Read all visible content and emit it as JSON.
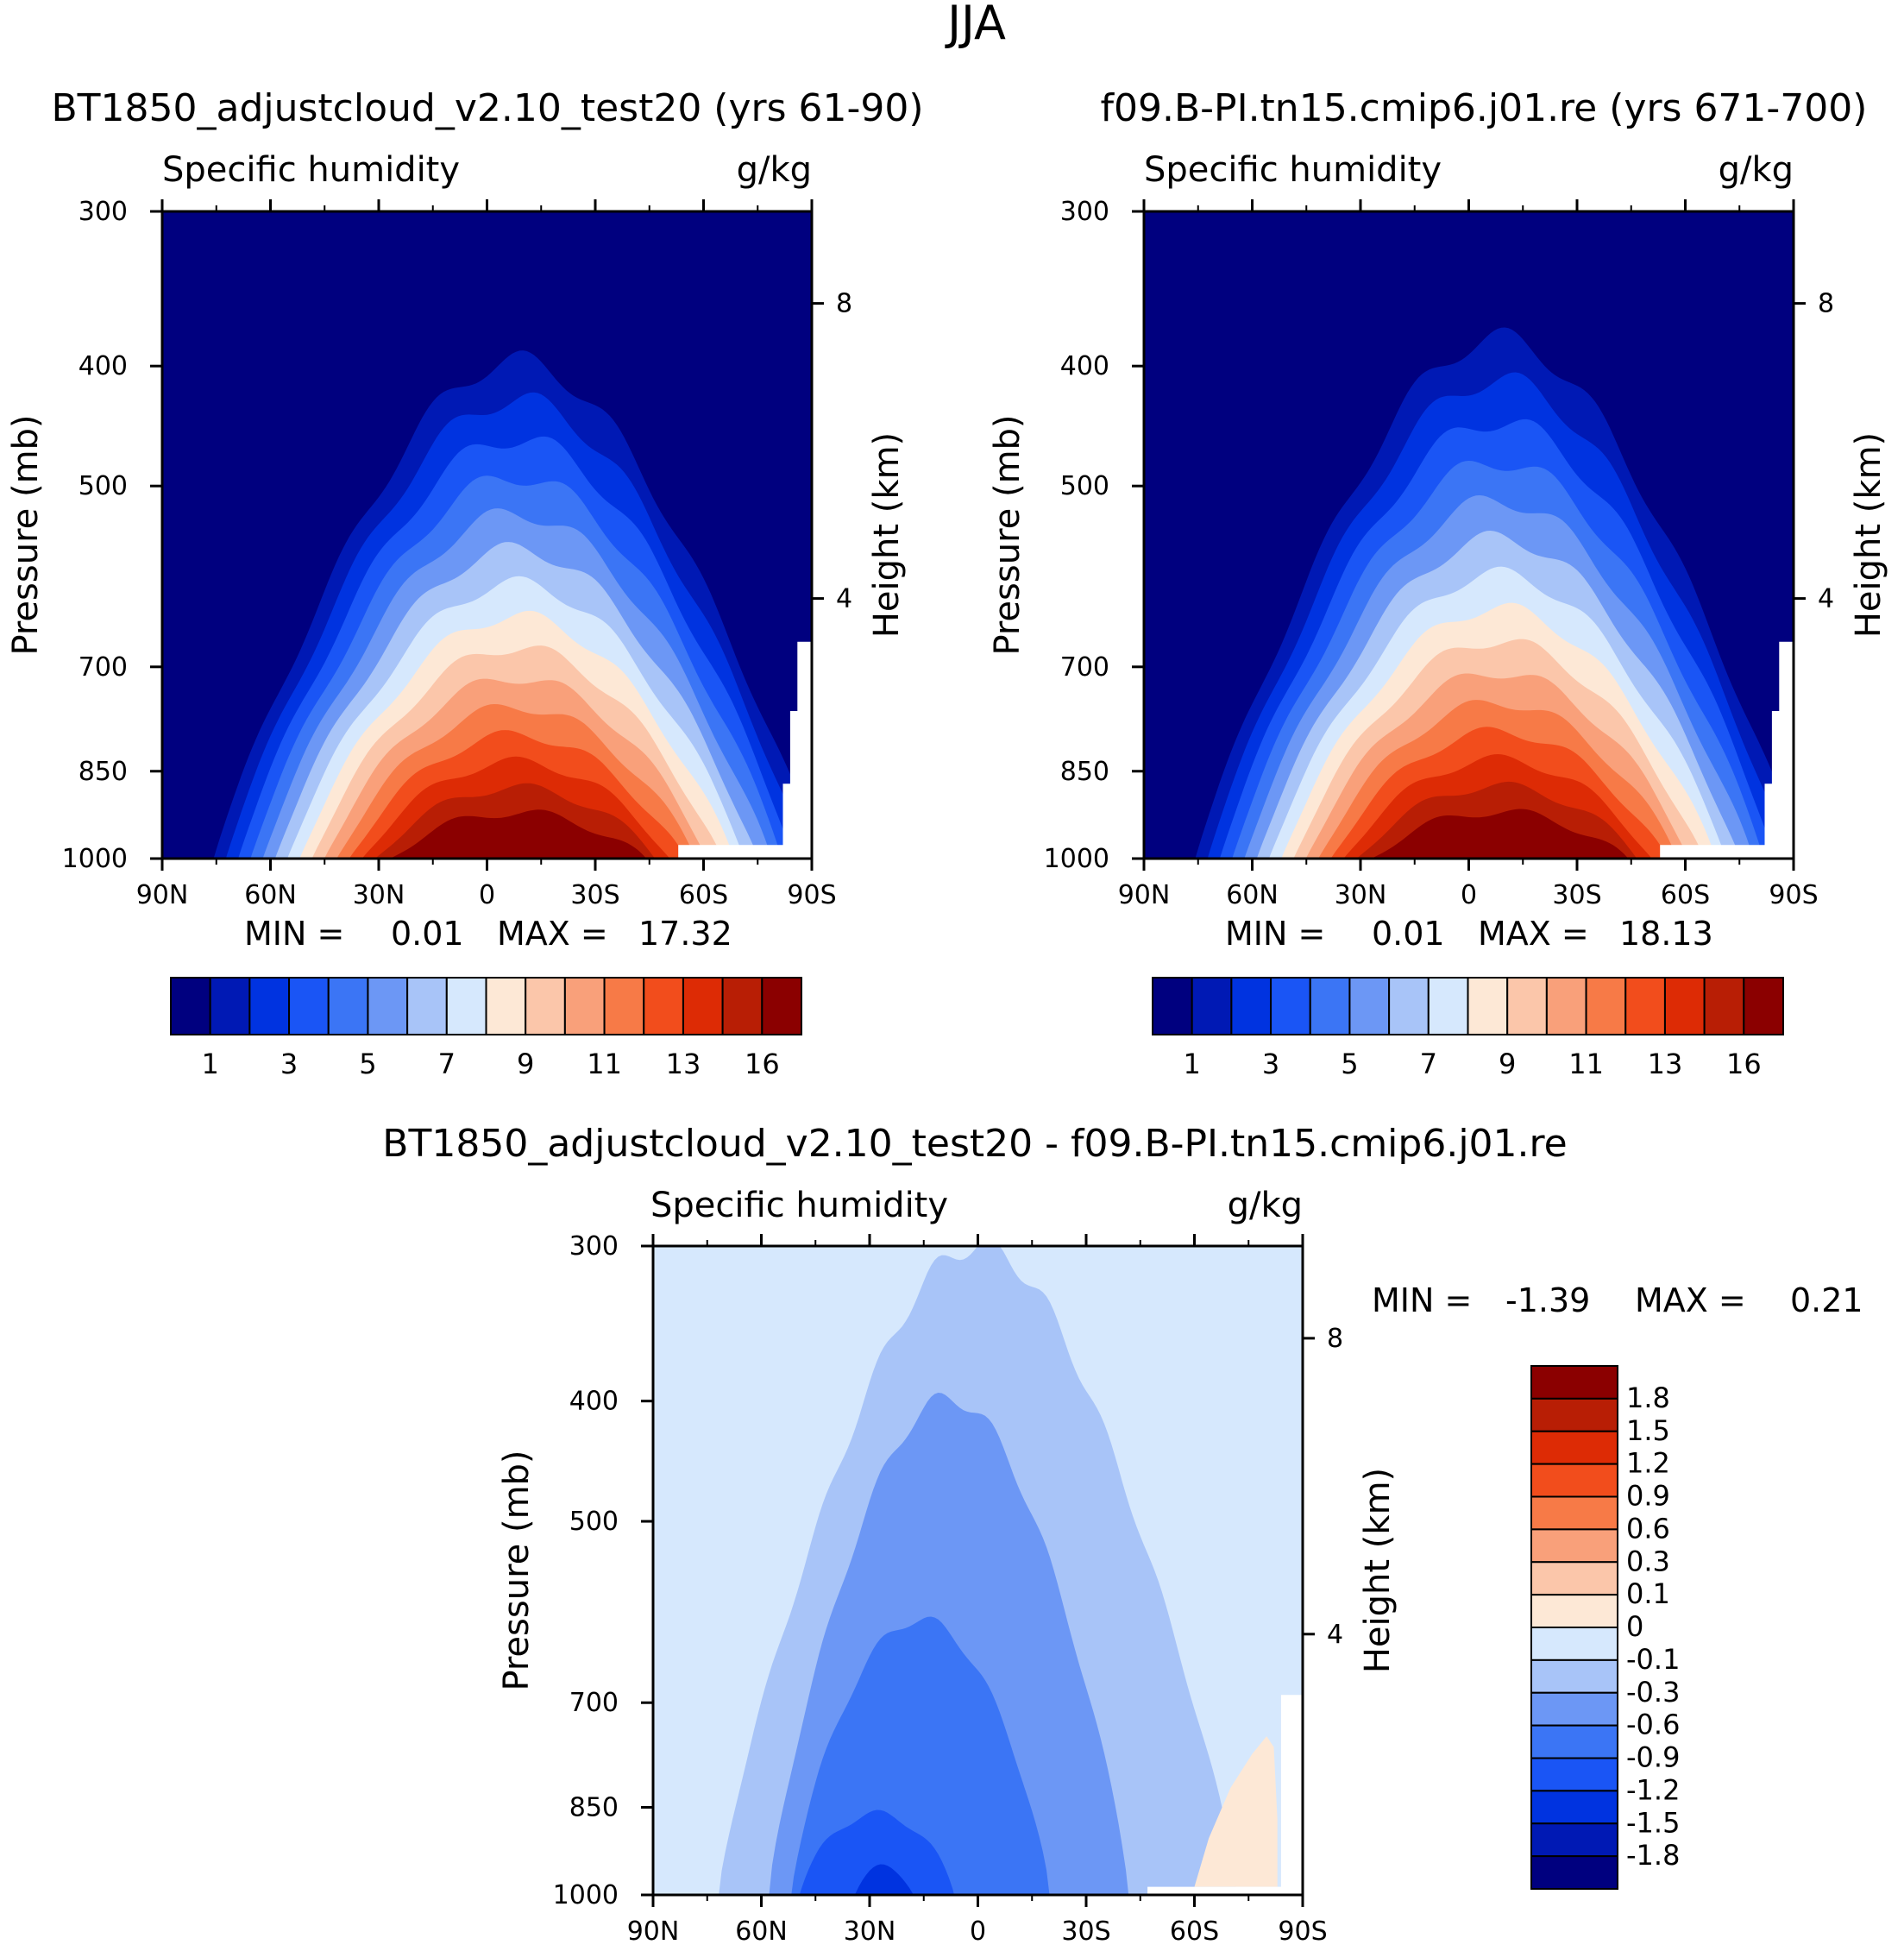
{
  "chart_data": {
    "type": "contour",
    "main_title": "JJA",
    "shared": {
      "lat_ticks": [
        "90N",
        "60N",
        "30N",
        "0",
        "30S",
        "60S",
        "90S"
      ],
      "lat_values": [
        90,
        60,
        30,
        0,
        -30,
        -60,
        -90
      ],
      "pressure_ticks": [
        "300",
        "400",
        "500",
        "700",
        "850",
        "1000"
      ],
      "pressure_values": [
        300,
        400,
        500,
        700,
        850,
        1000
      ],
      "height_ticks": [
        "8",
        "4"
      ],
      "height_values": [
        8,
        4
      ],
      "ylabel": "Pressure (mb)",
      "ylabel_right": "Height (km)",
      "variable": "Specific humidity",
      "units": "g/kg",
      "min_label": "MIN =",
      "max_label": "MAX ="
    },
    "panels": [
      {
        "title": "BT1850_adjustcloud_v2.10_test20 (yrs 61-90)",
        "min": "0.01",
        "max": "17.32",
        "peak_value": 17.32,
        "peak_lat": -8,
        "ridge_top_pressure": 372,
        "peak_level_pressure": 960
      },
      {
        "title": "f09.B-PI.tn15.cmip6.j01.re (yrs 671-700)",
        "min": "0.01",
        "max": "18.13",
        "peak_value": 18.13,
        "peak_lat": -8,
        "ridge_top_pressure": 355,
        "peak_level_pressure": 960
      }
    ],
    "colorbar": {
      "labels": [
        "1",
        "3",
        "5",
        "7",
        "9",
        "11",
        "13",
        "16"
      ],
      "levels": [
        1,
        2,
        3,
        4,
        5,
        6,
        7,
        8,
        9,
        10,
        11,
        12,
        13,
        14,
        16
      ],
      "colors": [
        "#00007f",
        "#0019b4",
        "#0033e0",
        "#1a55f5",
        "#3b75f5",
        "#6c97f5",
        "#a8c4f8",
        "#d6e8fd",
        "#fde8d6",
        "#fbc6aa",
        "#f9a07a",
        "#f77a47",
        "#f24d1c",
        "#dd2b05",
        "#b81e05",
        "#8b0000"
      ]
    },
    "diff_panel": {
      "title": "BT1850_adjustcloud_v2.10_test20 - f09.B-PI.tn15.cmip6.j01.re",
      "min": "-1.39",
      "max": "0.21",
      "min_value": -1.39,
      "max_value": 0.21,
      "colorbar_labels": [
        "1.8",
        "1.5",
        "1.2",
        "0.9",
        "0.6",
        "0.3",
        "0.1",
        "0",
        "-0.1",
        "-0.3",
        "-0.6",
        "-0.9",
        "-1.2",
        "-1.5",
        "-1.8"
      ],
      "colorbar_colors": [
        "#8b0000",
        "#b81e05",
        "#dd2b05",
        "#f24d1c",
        "#f77a47",
        "#f9a07a",
        "#fbc6aa",
        "#fde8d6",
        "#d6e8fd",
        "#a8c4f8",
        "#6c97f5",
        "#3b75f5",
        "#1a55f5",
        "#0033e0",
        "#0019b4",
        "#00007f"
      ]
    }
  }
}
